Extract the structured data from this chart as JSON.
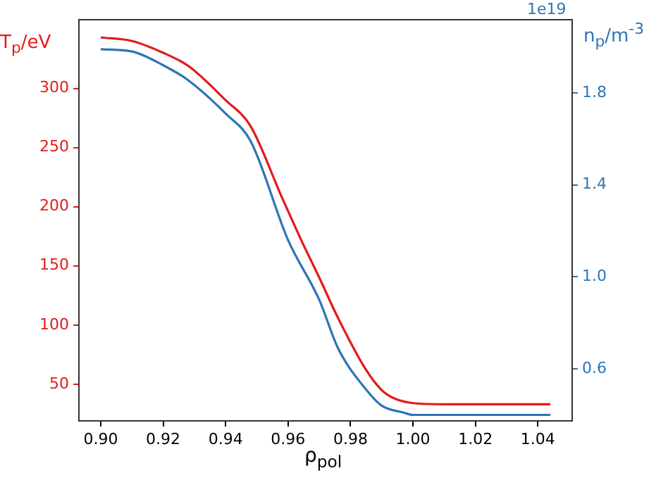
{
  "chart_data": {
    "type": "line",
    "xlabel": "ρ$_{pol}$",
    "ylabel": "T$_{p}$/eV",
    "y2label": "n$_{p}$/m$^{-3}$",
    "annotations": [
      "1e19"
    ],
    "xlim": [
      0.893,
      1.051
    ],
    "xticks": [
      {
        "value": 0.9,
        "label": "0.90"
      },
      {
        "value": 0.92,
        "label": "0.92"
      },
      {
        "value": 0.94,
        "label": "0.94"
      },
      {
        "value": 0.96,
        "label": "0.96"
      },
      {
        "value": 0.98,
        "label": "0.98"
      },
      {
        "value": 1.0,
        "label": "1.00"
      },
      {
        "value": 1.02,
        "label": "1.02"
      },
      {
        "value": 1.04,
        "label": "1.04"
      }
    ],
    "ylim": [
      19,
      358
    ],
    "yticks": [
      50,
      100,
      150,
      200,
      250,
      300
    ],
    "y2lim": [
      0.374,
      2.118
    ],
    "y2ticks": [
      {
        "value": 0.6,
        "label": "0.6"
      },
      {
        "value": 1.0,
        "label": "1.0"
      },
      {
        "value": 1.4,
        "label": "1.4"
      },
      {
        "value": 1.8,
        "label": "1.8"
      }
    ],
    "grid": false,
    "legend": false,
    "marker": "none",
    "line_style": "solid",
    "series": [
      {
        "color": "#e31a1c",
        "x": [
          0.9,
          0.91,
          0.92,
          0.928,
          0.94,
          0.948,
          0.958,
          0.964,
          0.97,
          0.976,
          0.985,
          0.99,
          0.994,
          1.0,
          1.01,
          1.044
        ],
        "values": [
          343,
          340,
          330,
          319,
          290,
          268,
          208,
          173,
          140,
          106,
          62,
          45,
          38,
          34,
          33,
          33
        ]
      },
      {
        "color": "#2f74b5",
        "axis": "y2",
        "x": [
          0.9,
          0.91,
          0.92,
          0.928,
          0.94,
          0.948,
          0.96,
          0.97,
          0.976,
          0.985,
          0.99,
          0.997,
          1.0,
          1.044
        ],
        "values": [
          1.99,
          1.98,
          1.92,
          1.855,
          1.71,
          1.59,
          1.16,
          0.9,
          0.69,
          0.51,
          0.44,
          0.41,
          0.4,
          0.4
        ]
      }
    ]
  }
}
